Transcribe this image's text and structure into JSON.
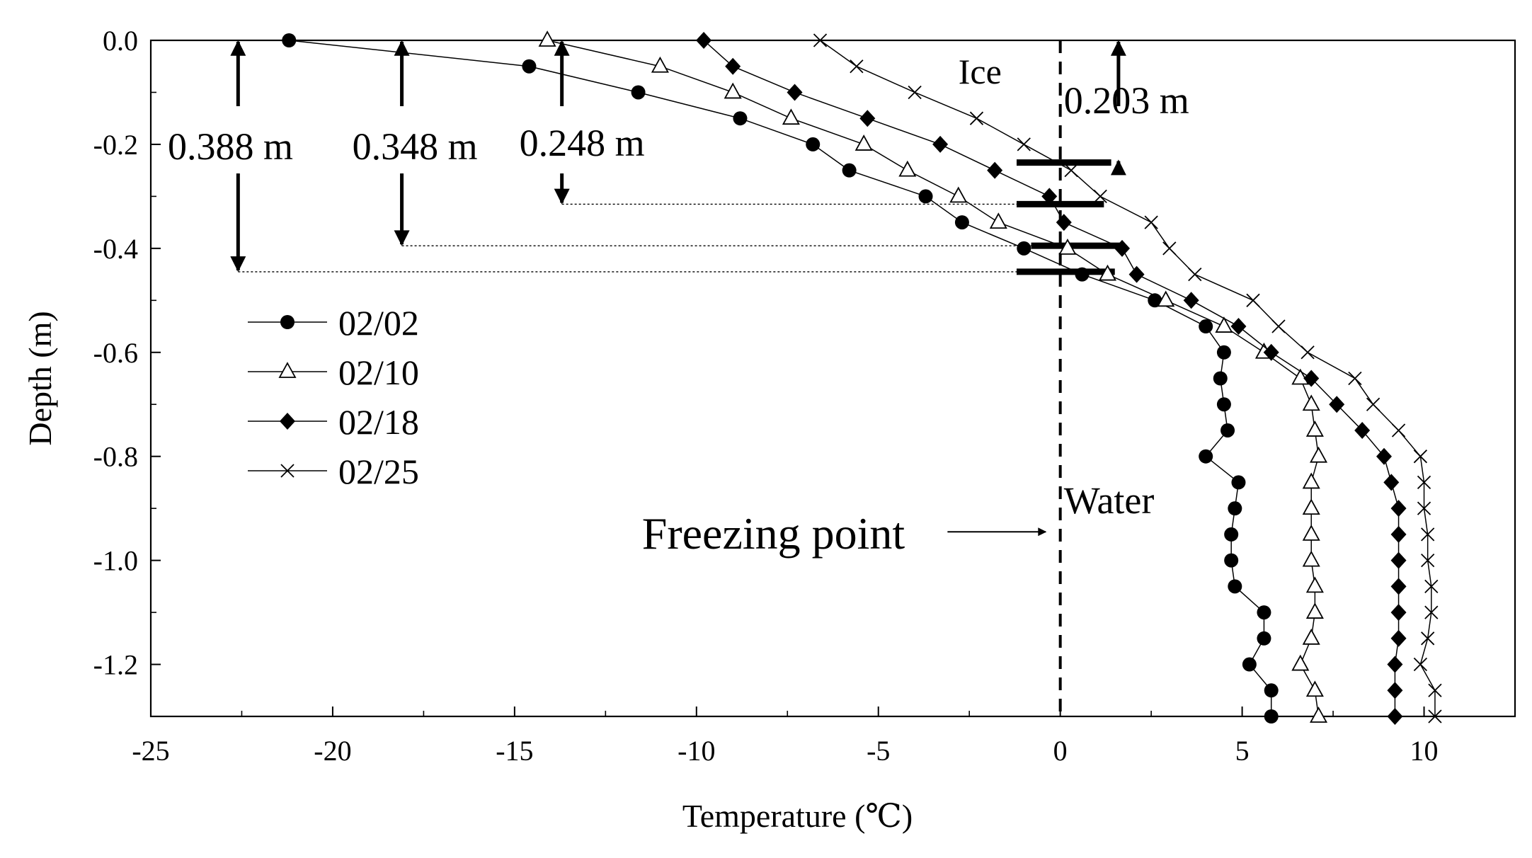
{
  "chart_data": {
    "type": "line",
    "title": "",
    "xlabel": "Temperature (℃)",
    "ylabel": "Depth (m)",
    "xlim": [
      -25,
      12.5
    ],
    "ylim": [
      -1.3,
      0.0
    ],
    "xticks": [
      -25,
      -20,
      -15,
      -10,
      -5,
      0,
      5,
      10
    ],
    "yticks": [
      0.0,
      -0.2,
      -0.4,
      -0.6,
      -0.8,
      -1.0,
      -1.2
    ],
    "xtick_labels": [
      "-25",
      "-20",
      "-15",
      "-10",
      "-5",
      "0",
      "5",
      "10"
    ],
    "ytick_labels": [
      "0.0",
      "-0.2",
      "-0.4",
      "-0.6",
      "-0.8",
      "-1.0",
      "-1.2"
    ],
    "grid": false,
    "legend_position": "middle-left",
    "series": [
      {
        "name": "02/02",
        "marker": "filled-circle",
        "points": [
          [
            -21.2,
            0.0
          ],
          [
            -14.6,
            -0.05
          ],
          [
            -11.6,
            -0.1
          ],
          [
            -8.8,
            -0.15
          ],
          [
            -6.8,
            -0.2
          ],
          [
            -5.8,
            -0.25
          ],
          [
            -3.7,
            -0.3
          ],
          [
            -2.7,
            -0.35
          ],
          [
            -1.0,
            -0.4
          ],
          [
            0.6,
            -0.45
          ],
          [
            2.6,
            -0.5
          ],
          [
            4.0,
            -0.55
          ],
          [
            4.5,
            -0.6
          ],
          [
            4.4,
            -0.65
          ],
          [
            4.5,
            -0.7
          ],
          [
            4.6,
            -0.75
          ],
          [
            4.0,
            -0.8
          ],
          [
            4.9,
            -0.85
          ],
          [
            4.8,
            -0.9
          ],
          [
            4.7,
            -0.95
          ],
          [
            4.7,
            -1.0
          ],
          [
            4.8,
            -1.05
          ],
          [
            5.6,
            -1.1
          ],
          [
            5.6,
            -1.15
          ],
          [
            5.2,
            -1.2
          ],
          [
            5.8,
            -1.25
          ],
          [
            5.8,
            -1.3
          ]
        ]
      },
      {
        "name": "02/10",
        "marker": "open-triangle",
        "points": [
          [
            -14.1,
            0.0
          ],
          [
            -11.0,
            -0.05
          ],
          [
            -9.0,
            -0.1
          ],
          [
            -7.4,
            -0.15
          ],
          [
            -5.4,
            -0.2
          ],
          [
            -4.2,
            -0.25
          ],
          [
            -2.8,
            -0.3
          ],
          [
            -1.7,
            -0.35
          ],
          [
            0.2,
            -0.4
          ],
          [
            1.3,
            -0.45
          ],
          [
            2.9,
            -0.5
          ],
          [
            4.5,
            -0.55
          ],
          [
            5.6,
            -0.6
          ],
          [
            6.6,
            -0.65
          ],
          [
            6.9,
            -0.7
          ],
          [
            7.0,
            -0.75
          ],
          [
            7.1,
            -0.8
          ],
          [
            6.9,
            -0.85
          ],
          [
            6.9,
            -0.9
          ],
          [
            6.9,
            -0.95
          ],
          [
            6.9,
            -1.0
          ],
          [
            7.0,
            -1.05
          ],
          [
            7.0,
            -1.1
          ],
          [
            6.9,
            -1.15
          ],
          [
            6.6,
            -1.2
          ],
          [
            7.0,
            -1.25
          ],
          [
            7.1,
            -1.3
          ]
        ]
      },
      {
        "name": "02/18",
        "marker": "filled-diamond",
        "points": [
          [
            -9.8,
            0.0
          ],
          [
            -9.0,
            -0.05
          ],
          [
            -7.3,
            -0.1
          ],
          [
            -5.3,
            -0.15
          ],
          [
            -3.3,
            -0.2
          ],
          [
            -1.8,
            -0.25
          ],
          [
            -0.3,
            -0.3
          ],
          [
            0.1,
            -0.35
          ],
          [
            1.7,
            -0.4
          ],
          [
            2.1,
            -0.45
          ],
          [
            3.6,
            -0.5
          ],
          [
            4.9,
            -0.55
          ],
          [
            5.8,
            -0.6
          ],
          [
            6.9,
            -0.65
          ],
          [
            7.6,
            -0.7
          ],
          [
            8.3,
            -0.75
          ],
          [
            8.9,
            -0.8
          ],
          [
            9.1,
            -0.85
          ],
          [
            9.3,
            -0.9
          ],
          [
            9.3,
            -0.95
          ],
          [
            9.3,
            -1.0
          ],
          [
            9.3,
            -1.05
          ],
          [
            9.3,
            -1.1
          ],
          [
            9.3,
            -1.15
          ],
          [
            9.2,
            -1.2
          ],
          [
            9.2,
            -1.25
          ],
          [
            9.2,
            -1.3
          ]
        ]
      },
      {
        "name": "02/25",
        "marker": "cross",
        "points": [
          [
            -6.6,
            0.0
          ],
          [
            -5.6,
            -0.05
          ],
          [
            -4.0,
            -0.1
          ],
          [
            -2.3,
            -0.15
          ],
          [
            -1.0,
            -0.2
          ],
          [
            0.3,
            -0.25
          ],
          [
            1.1,
            -0.3
          ],
          [
            2.5,
            -0.35
          ],
          [
            3.0,
            -0.4
          ],
          [
            3.7,
            -0.45
          ],
          [
            5.3,
            -0.5
          ],
          [
            6.0,
            -0.55
          ],
          [
            6.8,
            -0.6
          ],
          [
            8.1,
            -0.65
          ],
          [
            8.6,
            -0.7
          ],
          [
            9.3,
            -0.75
          ],
          [
            9.9,
            -0.8
          ],
          [
            10.0,
            -0.85
          ],
          [
            10.0,
            -0.9
          ],
          [
            10.1,
            -0.95
          ],
          [
            10.1,
            -1.0
          ],
          [
            10.2,
            -1.05
          ],
          [
            10.2,
            -1.1
          ],
          [
            10.1,
            -1.15
          ],
          [
            9.9,
            -1.2
          ],
          [
            10.3,
            -1.25
          ],
          [
            10.3,
            -1.3
          ]
        ]
      }
    ],
    "reference_lines": [
      {
        "name": "freezing-point",
        "axis": "x",
        "value": 0,
        "style": "dashed"
      }
    ],
    "ice_thickness_markers": [
      {
        "label": "0.388 m",
        "arrow_x": -22.6,
        "depth": -0.445,
        "bar_x_range": [
          -1.2,
          1.5
        ]
      },
      {
        "label": "0.348 m",
        "arrow_x": -18.1,
        "depth": -0.395,
        "bar_x_range": [
          -0.8,
          1.7
        ]
      },
      {
        "label": "0.248 m",
        "arrow_x": -13.7,
        "depth": -0.315,
        "bar_x_range": [
          -1.2,
          1.2
        ]
      },
      {
        "label": "0.203 m",
        "arrow_x": 1.6,
        "depth": -0.235,
        "bar_x_range": [
          -1.2,
          1.4
        ]
      }
    ],
    "annotations": {
      "ice": "Ice",
      "water": "Water",
      "freezing_point": "Freezing point"
    }
  }
}
